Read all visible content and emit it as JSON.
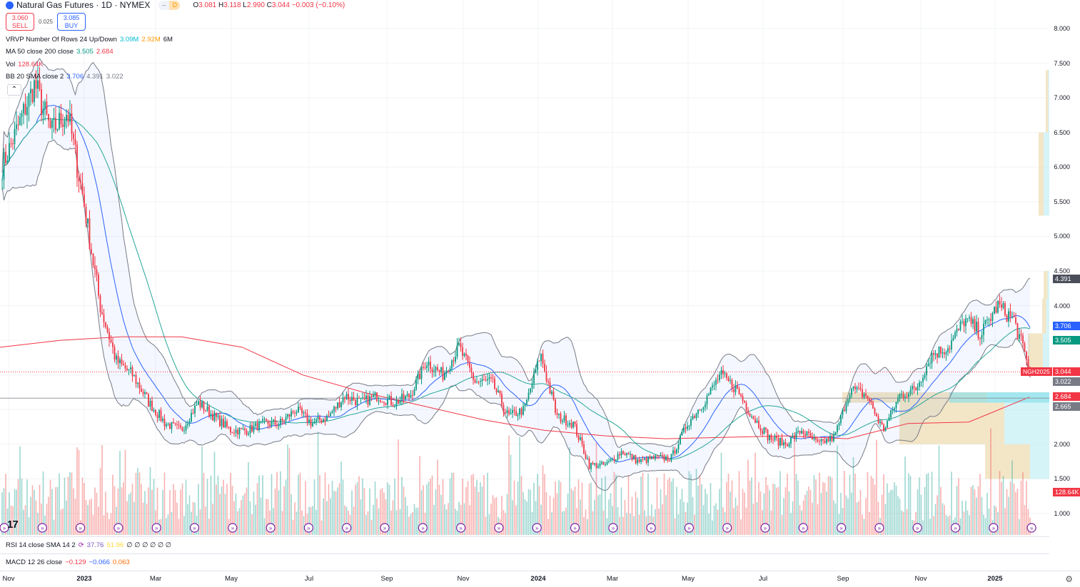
{
  "header": {
    "title": "Natural Gas Futures · 1D · NYMEX",
    "pill": [
      "–",
      "D"
    ],
    "ohlc": {
      "o_label": "O",
      "o": "3.081",
      "h_label": "H",
      "h": "3.118",
      "l_label": "L",
      "l": "2.990",
      "c_label": "C",
      "c": "3.044",
      "change": "−0.003 (−0.10%)"
    }
  },
  "trade": {
    "sell_price": "3.060",
    "sell_label": "SELL",
    "spread": "0.025",
    "buy_price": "3.085",
    "buy_label": "BUY"
  },
  "legends": {
    "vrvp": {
      "name": "VRVP Number Of Rows 24 Up/Down",
      "up": "3.09M",
      "down": "2.92M",
      "total": "6M"
    },
    "ma": {
      "name": "MA 50 close 200 close",
      "ma50": "3.505",
      "ma200": "2.684"
    },
    "vol": {
      "name": "Vol",
      "value": "128.64K"
    },
    "bb": {
      "name": "BB 20 SMA close 2",
      "basis": "3.706",
      "upper": "4.391",
      "lower": "3.022"
    }
  },
  "rsi": {
    "name": "RSI 14 close SMA 14 2",
    "rsi": "37.76",
    "sma": "51.96",
    "empty": "∅ ∅ ∅ ∅ ∅ ∅"
  },
  "macd": {
    "name": "MACD 12 26 close",
    "macd": "−0.129",
    "signal": "−0.066",
    "hist": "0.063"
  },
  "price_axis": [
    "8.000",
    "7.500",
    "7.000",
    "6.500",
    "6.000",
    "5.500",
    "5.000",
    "4.500",
    "4.000",
    "2.000",
    "1.500",
    "1.000"
  ],
  "tags": {
    "bb_upper": "4.391",
    "bb_basis": "3.706",
    "ma50": "3.505",
    "symbol": "NGH2025",
    "last": "3.044",
    "bb_lower": "3.022",
    "ma200": "2.684",
    "line": "2.665",
    "volume": "128.64K"
  },
  "time_axis": [
    {
      "t": "Nov",
      "y": false
    },
    {
      "t": "2023",
      "y": true
    },
    {
      "t": "Mar",
      "y": false
    },
    {
      "t": "May",
      "y": false
    },
    {
      "t": "Jul",
      "y": false
    },
    {
      "t": "Sep",
      "y": false
    },
    {
      "t": "Nov",
      "y": false
    },
    {
      "t": "2024",
      "y": true
    },
    {
      "t": "Mar",
      "y": false
    },
    {
      "t": "May",
      "y": false
    },
    {
      "t": "Jul",
      "y": false
    },
    {
      "t": "Sep",
      "y": false
    },
    {
      "t": "Nov",
      "y": false
    },
    {
      "t": "2025",
      "y": true
    }
  ],
  "logo": "TV",
  "colors": {
    "up": "#089981",
    "down": "#f23645",
    "ma50": "#26a69a",
    "ma200": "#f23645",
    "bb": "#2962ff",
    "vrvp_up": "#b2ebf2",
    "vrvp_down": "#ffe0b2"
  },
  "chart_data": {
    "type": "candlestick",
    "price_range": [
      0.8,
      8.2
    ],
    "close_path_by_month": [
      6.0,
      6.6,
      7.2,
      6.5,
      6.8,
      5.5,
      4.0,
      3.2,
      3.0,
      2.6,
      2.3,
      2.2,
      2.6,
      2.4,
      2.2,
      2.2,
      2.3,
      2.3,
      2.5,
      2.3,
      2.4,
      2.7,
      2.6,
      2.7,
      2.6,
      2.7,
      3.2,
      3.0,
      3.4,
      2.9,
      2.9,
      2.4,
      2.5,
      3.3,
      2.4,
      2.3,
      1.7,
      1.7,
      1.9,
      1.75,
      1.8,
      1.8,
      2.3,
      2.6,
      3.0,
      2.8,
      2.4,
      2.1,
      2.0,
      2.2,
      2.0,
      2.1,
      2.8,
      2.7,
      2.2,
      2.7,
      2.8,
      3.3,
      3.4,
      3.8,
      3.6,
      4.0,
      3.8,
      3.05
    ],
    "ma200_path": [
      3.4,
      3.5,
      3.55,
      3.55,
      3.4,
      3.0,
      2.75,
      2.55,
      2.35,
      2.2,
      2.12,
      2.08,
      2.1,
      2.12,
      2.08,
      2.3,
      2.32,
      2.68
    ]
  }
}
